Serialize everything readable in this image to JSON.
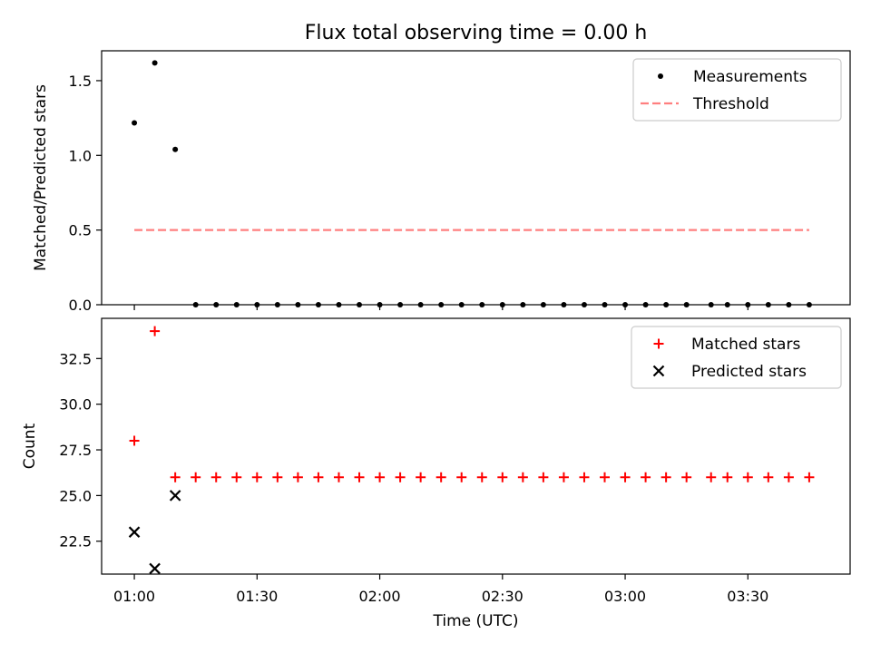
{
  "figure": {
    "title": "Flux total observing time = 0.00 h"
  },
  "chart_data": [
    {
      "type": "scatter",
      "ylabel": "Matched/Predicted stars",
      "ylim": [
        0,
        1.7
      ],
      "yticks": [
        0.0,
        0.5,
        1.0,
        1.5
      ],
      "ytick_labels": [
        "0.0",
        "0.5",
        "1.0",
        "1.5"
      ],
      "xlim": [
        "00:52",
        "03:55"
      ],
      "legend_position": "upper right",
      "series": [
        {
          "name": "Measurements",
          "style": "dot",
          "color": "#000000",
          "x": [
            "01:00",
            "01:05",
            "01:10",
            "01:15",
            "01:20",
            "01:25",
            "01:30",
            "01:35",
            "01:40",
            "01:45",
            "01:50",
            "01:55",
            "02:00",
            "02:05",
            "02:10",
            "02:15",
            "02:20",
            "02:25",
            "02:30",
            "02:35",
            "02:40",
            "02:45",
            "02:50",
            "02:55",
            "03:00",
            "03:05",
            "03:10",
            "03:15",
            "03:21",
            "03:25",
            "03:30",
            "03:35",
            "03:40",
            "03:45"
          ],
          "y": [
            1.217,
            1.619,
            1.04,
            0,
            0,
            0,
            0,
            0,
            0,
            0,
            0,
            0,
            0,
            0,
            0,
            0,
            0,
            0,
            0,
            0,
            0,
            0,
            0,
            0,
            0,
            0,
            0,
            0,
            0,
            0,
            0,
            0,
            0,
            0
          ]
        },
        {
          "name": "Threshold",
          "style": "dashed-line",
          "color": "#ff7f7f",
          "x": [
            "01:00",
            "03:45"
          ],
          "y": [
            0.5,
            0.5
          ]
        }
      ]
    },
    {
      "type": "scatter",
      "xlabel": "Time (UTC)",
      "ylabel": "Count",
      "ylim": [
        20.7,
        34.7
      ],
      "yticks": [
        22.5,
        25.0,
        27.5,
        30.0,
        32.5
      ],
      "ytick_labels": [
        "22.5",
        "25.0",
        "27.5",
        "30.0",
        "32.5"
      ],
      "xlim": [
        "00:52",
        "03:55"
      ],
      "xticks": [
        "01:00",
        "01:30",
        "02:00",
        "02:30",
        "03:00",
        "03:30"
      ],
      "xtick_labels": [
        "01:00",
        "01:30",
        "02:00",
        "02:30",
        "03:00",
        "03:30"
      ],
      "legend_position": "upper right",
      "series": [
        {
          "name": "Matched stars",
          "style": "plus",
          "color": "#ff0000",
          "x": [
            "01:00",
            "01:05",
            "01:10",
            "01:15",
            "01:20",
            "01:25",
            "01:30",
            "01:35",
            "01:40",
            "01:45",
            "01:50",
            "01:55",
            "02:00",
            "02:05",
            "02:10",
            "02:15",
            "02:20",
            "02:25",
            "02:30",
            "02:35",
            "02:40",
            "02:45",
            "02:50",
            "02:55",
            "03:00",
            "03:05",
            "03:10",
            "03:15",
            "03:21",
            "03:25",
            "03:30",
            "03:35",
            "03:40",
            "03:45"
          ],
          "y": [
            28,
            34,
            26,
            26,
            26,
            26,
            26,
            26,
            26,
            26,
            26,
            26,
            26,
            26,
            26,
            26,
            26,
            26,
            26,
            26,
            26,
            26,
            26,
            26,
            26,
            26,
            26,
            26,
            26,
            26,
            26,
            26,
            26,
            26
          ]
        },
        {
          "name": "Predicted stars",
          "style": "x",
          "color": "#000000",
          "x": [
            "01:00",
            "01:05",
            "01:10"
          ],
          "y": [
            23,
            21,
            25
          ]
        }
      ]
    }
  ]
}
